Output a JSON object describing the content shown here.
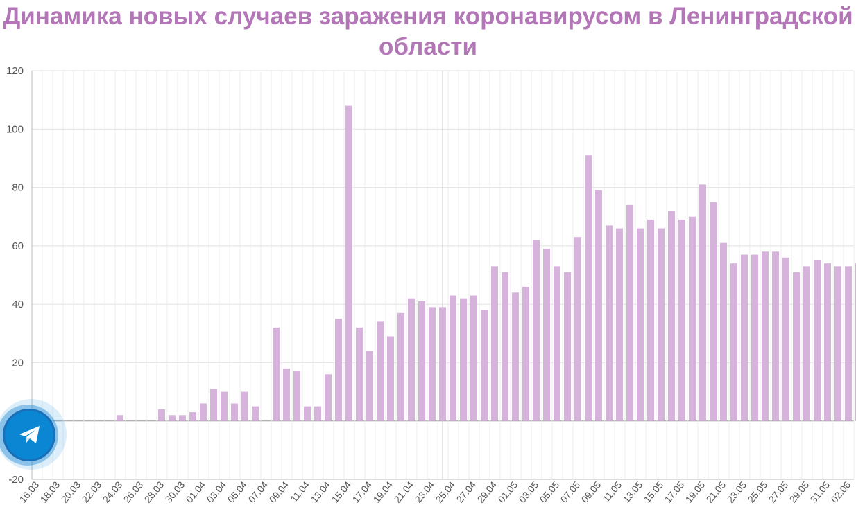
{
  "title": "Динамика новых случаев заражения коронавирусом в Ленинградской области",
  "colors": {
    "bar": "#d5b3db",
    "title": "#b377b8",
    "grid": "#e2e2e2",
    "axis": "#bbbbbb",
    "text": "#555555",
    "telegram": "#0a86d2"
  },
  "telegram_button": {
    "icon": "telegram-paper-plane-icon"
  },
  "chart_data": {
    "type": "bar",
    "title": "Динамика новых случаев заражения коронавирусом в Ленинградской области",
    "xlabel": "",
    "ylabel": "",
    "ylim": [
      -20,
      120
    ],
    "yticks": [
      -20,
      0,
      20,
      40,
      60,
      80,
      100,
      120
    ],
    "grid": true,
    "categories": [
      "16.03",
      "17.03",
      "18.03",
      "19.03",
      "20.03",
      "21.03",
      "22.03",
      "23.03",
      "24.03",
      "25.03",
      "26.03",
      "27.03",
      "28.03",
      "29.03",
      "30.03",
      "31.03",
      "01.04",
      "02.04",
      "03.04",
      "04.04",
      "05.04",
      "06.04",
      "07.04",
      "08.04",
      "09.04",
      "10.04",
      "11.04",
      "12.04",
      "13.04",
      "14.04",
      "15.04",
      "16.04",
      "17.04",
      "18.04",
      "19.04",
      "20.04",
      "21.04",
      "22.04",
      "23.04",
      "24.04",
      "25.04",
      "26.04",
      "27.04",
      "28.04",
      "29.04",
      "30.04",
      "01.05",
      "02.05",
      "03.05",
      "04.05",
      "05.05",
      "06.05",
      "07.05",
      "08.05",
      "09.05",
      "10.05",
      "11.05",
      "12.05",
      "13.05",
      "14.05",
      "15.05",
      "16.05",
      "17.05",
      "18.05",
      "19.05",
      "20.05",
      "21.05",
      "22.05",
      "23.05",
      "24.05",
      "25.05",
      "26.05",
      "27.05",
      "28.05",
      "29.05",
      "30.05",
      "31.05",
      "01.06",
      "02.06",
      "03.06"
    ],
    "tick_labels": [
      "16.03",
      "18.03",
      "20.03",
      "22.03",
      "24.03",
      "26.03",
      "28.03",
      "30.03",
      "01.04",
      "03.04",
      "05.04",
      "07.04",
      "09.04",
      "11.04",
      "13.04",
      "15.04",
      "17.04",
      "19.04",
      "21.04",
      "23.04",
      "25.04",
      "27.04",
      "29.04",
      "01.05",
      "03.05",
      "05.05",
      "07.05",
      "09.05",
      "11.05",
      "13.05",
      "15.05",
      "17.05",
      "19.05",
      "21.05",
      "23.05",
      "25.05",
      "27.05",
      "29.05",
      "31.05",
      "02.06"
    ],
    "values": [
      0,
      0,
      0,
      0,
      0,
      0,
      0,
      0,
      2,
      0,
      0,
      0,
      4,
      2,
      2,
      3,
      6,
      11,
      10,
      6,
      10,
      5,
      0,
      32,
      18,
      17,
      5,
      5,
      16,
      35,
      108,
      32,
      24,
      34,
      29,
      37,
      42,
      41,
      39,
      39,
      43,
      42,
      43,
      38,
      53,
      51,
      44,
      46,
      62,
      59,
      53,
      51,
      63,
      91,
      79,
      67,
      66,
      74,
      66,
      69,
      66,
      72,
      69,
      70,
      81,
      75,
      61,
      54,
      57,
      57,
      58,
      58,
      56,
      51,
      53,
      55,
      54,
      53,
      53,
      54
    ]
  }
}
